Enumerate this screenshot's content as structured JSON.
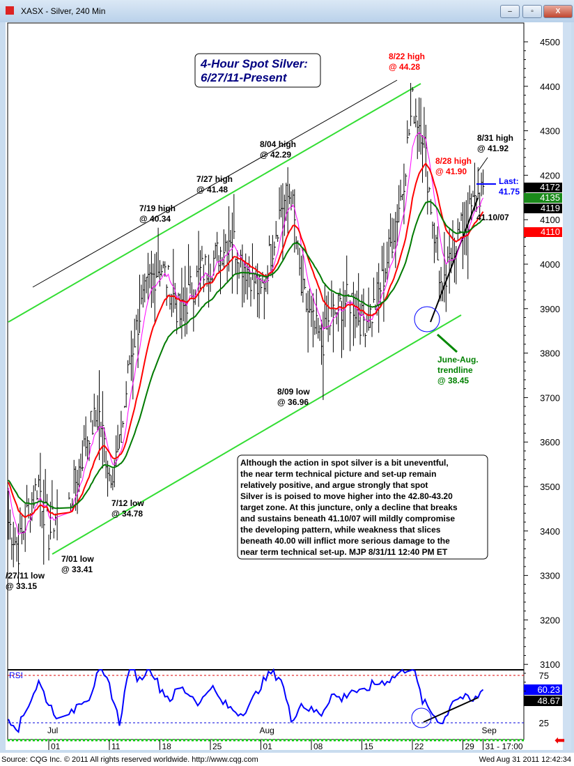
{
  "window": {
    "title": "XASX - Silver, 240 Min",
    "minimize": "–",
    "maximize": "▫",
    "close": "X"
  },
  "footer": {
    "source": "Source: CQG Inc. © 2011 All rights reserved worldwide. http://www.cqg.com",
    "timestamp": "Wed Aug 31 2011 12:42:34"
  },
  "chart_data": {
    "type": "bar",
    "title": "4-Hour Spot Silver:",
    "subtitle": "6/27/11-Present",
    "y_ticks": [
      3100,
      3200,
      3300,
      3400,
      3500,
      3600,
      3700,
      3800,
      3900,
      4000,
      4100,
      4200,
      4300,
      4400,
      4500
    ],
    "ylim": [
      3060,
      4560
    ],
    "x_ticks": [
      "01",
      "11",
      "18",
      "25",
      "01",
      "08",
      "15",
      "22",
      "29",
      "31 - 17:00"
    ],
    "x_tick_dates": [
      "2011-07-01",
      "2011-07-11",
      "2011-07-18",
      "2011-07-25",
      "2011-08-01",
      "2011-08-08",
      "2011-08-15",
      "2011-08-22",
      "2011-08-29",
      "2011-08-31"
    ],
    "months": [
      {
        "label": "Jul",
        "date": "2011-07-01"
      },
      {
        "label": "Aug",
        "date": "2011-08-01"
      },
      {
        "label": "Sep",
        "date": "2011-08-31"
      }
    ],
    "price_path": [
      [
        "2011-06-27",
        34.2
      ],
      [
        "2011-06-28",
        33.6
      ],
      [
        "2011-06-29",
        34.5
      ],
      [
        "2011-06-30",
        35.1
      ],
      [
        "2011-07-01",
        33.9
      ],
      [
        "2011-07-05",
        34.6
      ],
      [
        "2011-07-06",
        35.4
      ],
      [
        "2011-07-07",
        36.3
      ],
      [
        "2011-07-08",
        36.6
      ],
      [
        "2011-07-11",
        35.3
      ],
      [
        "2011-07-12",
        35.8
      ],
      [
        "2011-07-13",
        37.8
      ],
      [
        "2011-07-14",
        38.9
      ],
      [
        "2011-07-15",
        39.6
      ],
      [
        "2011-07-18",
        40.0
      ],
      [
        "2011-07-19",
        39.5
      ],
      [
        "2011-07-20",
        38.8
      ],
      [
        "2011-07-21",
        39.4
      ],
      [
        "2011-07-22",
        39.8
      ],
      [
        "2011-07-25",
        40.0
      ],
      [
        "2011-07-26",
        40.3
      ],
      [
        "2011-07-27",
        40.7
      ],
      [
        "2011-07-28",
        40.1
      ],
      [
        "2011-07-29",
        39.8
      ],
      [
        "2011-08-01",
        39.3
      ],
      [
        "2011-08-02",
        40.3
      ],
      [
        "2011-08-03",
        41.3
      ],
      [
        "2011-08-04",
        41.6
      ],
      [
        "2011-08-05",
        39.4
      ],
      [
        "2011-08-08",
        38.7
      ],
      [
        "2011-08-09",
        38.2
      ],
      [
        "2011-08-10",
        38.8
      ],
      [
        "2011-08-11",
        39.1
      ],
      [
        "2011-08-12",
        39.2
      ],
      [
        "2011-08-15",
        38.7
      ],
      [
        "2011-08-16",
        38.9
      ],
      [
        "2011-08-17",
        39.6
      ],
      [
        "2011-08-18",
        40.6
      ],
      [
        "2011-08-19",
        41.7
      ],
      [
        "2011-08-22",
        43.6
      ],
      [
        "2011-08-23",
        43.0
      ],
      [
        "2011-08-24",
        41.0
      ],
      [
        "2011-08-25",
        39.2
      ],
      [
        "2011-08-26",
        40.4
      ],
      [
        "2011-08-29",
        40.8
      ],
      [
        "2011-08-30",
        41.3
      ],
      [
        "2011-08-31",
        41.75
      ]
    ],
    "rsi": {
      "label": "RSI",
      "levels": [
        25,
        75
      ],
      "readouts": [
        "60.23",
        "48.67"
      ],
      "path": [
        [
          "2011-06-27",
          30
        ],
        [
          "2011-06-28",
          20
        ],
        [
          "2011-06-29",
          45
        ],
        [
          "2011-06-30",
          68
        ],
        [
          "2011-07-01",
          45
        ],
        [
          "2011-07-05",
          30
        ],
        [
          "2011-07-06",
          48
        ],
        [
          "2011-07-07",
          52
        ],
        [
          "2011-07-08",
          80
        ],
        [
          "2011-07-11",
          65
        ],
        [
          "2011-07-12",
          25
        ],
        [
          "2011-07-13",
          85
        ],
        [
          "2011-07-14",
          70
        ],
        [
          "2011-07-15",
          85
        ],
        [
          "2011-07-18",
          62
        ],
        [
          "2011-07-19",
          50
        ],
        [
          "2011-07-20",
          62
        ],
        [
          "2011-07-21",
          55
        ],
        [
          "2011-07-22",
          45
        ],
        [
          "2011-07-25",
          65
        ],
        [
          "2011-07-26",
          48
        ],
        [
          "2011-07-27",
          40
        ],
        [
          "2011-07-28",
          35
        ],
        [
          "2011-07-29",
          45
        ],
        [
          "2011-08-01",
          65
        ],
        [
          "2011-08-02",
          78
        ],
        [
          "2011-08-03",
          72
        ],
        [
          "2011-08-04",
          28
        ],
        [
          "2011-08-05",
          45
        ],
        [
          "2011-08-08",
          38
        ],
        [
          "2011-08-09",
          35
        ],
        [
          "2011-08-10",
          55
        ],
        [
          "2011-08-11",
          50
        ],
        [
          "2011-08-12",
          60
        ],
        [
          "2011-08-15",
          56
        ],
        [
          "2011-08-16",
          65
        ],
        [
          "2011-08-17",
          68
        ],
        [
          "2011-08-18",
          72
        ],
        [
          "2011-08-19",
          80
        ],
        [
          "2011-08-22",
          85
        ],
        [
          "2011-08-23",
          48
        ],
        [
          "2011-08-24",
          35
        ],
        [
          "2011-08-25",
          24
        ],
        [
          "2011-08-26",
          50
        ],
        [
          "2011-08-29",
          52
        ],
        [
          "2011-08-30",
          47
        ],
        [
          "2011-08-31",
          60
        ]
      ]
    },
    "price_labels": [
      {
        "text": "4172",
        "color": "#000000"
      },
      {
        "text": "4135",
        "color": "#1a8a1a"
      },
      {
        "text": "4119",
        "color": "#000000"
      },
      {
        "text": "4110",
        "color": "#ff0000"
      }
    ],
    "annotations": {
      "h822": [
        "8/22 high",
        "@ 44.28"
      ],
      "h831": [
        "8/31 high",
        "@ 41.92"
      ],
      "h828": [
        "8/28 high",
        "@ 41.90"
      ],
      "last": [
        "Last:",
        "41.75"
      ],
      "support": "41.10/07",
      "h804": [
        "8/04 high",
        "@ 42.29"
      ],
      "h727": [
        "7/27 high",
        "@ 41.48"
      ],
      "h719": [
        "7/19 high",
        "@ 40.34"
      ],
      "l809": [
        "8/09 low",
        "@ 36.96"
      ],
      "l712": [
        "7/12 low",
        "@ 34.78"
      ],
      "l701": [
        "7/01 low",
        "@ 33.41"
      ],
      "l627": [
        "/27/11 low",
        "@ 33.15"
      ],
      "trend": [
        "June-Aug.",
        "trendline",
        "@ 38.45"
      ]
    },
    "commentary": [
      "Although the action in spot silver is a bit uneventful,",
      "the near term technical picture and set-up remain",
      "relatively positive, and argue strongly that spot",
      "Silver is is poised to move higher into the 42.80-43.20",
      "target zone. At this juncture, only a decline that breaks",
      "and sustains beneath 41.10/07 will mildly compromise",
      "the developing pattern, while weakness that slices",
      "beneath 40.00 will inflict more serious damage to the",
      "near term technical set-up. MJP  8/31/11 12:40 PM ET"
    ],
    "colors": {
      "bars": "#000000",
      "ma_fast": "#ff00ff",
      "ma_mid": "#ff0000",
      "ma_slow": "#007a00",
      "channel": "#33dd33",
      "rsi": "#0000ff",
      "annotation_red": "#ff0000",
      "annotation_blue": "#0000ff",
      "annotation_green": "#008000",
      "title": "#000080"
    }
  }
}
